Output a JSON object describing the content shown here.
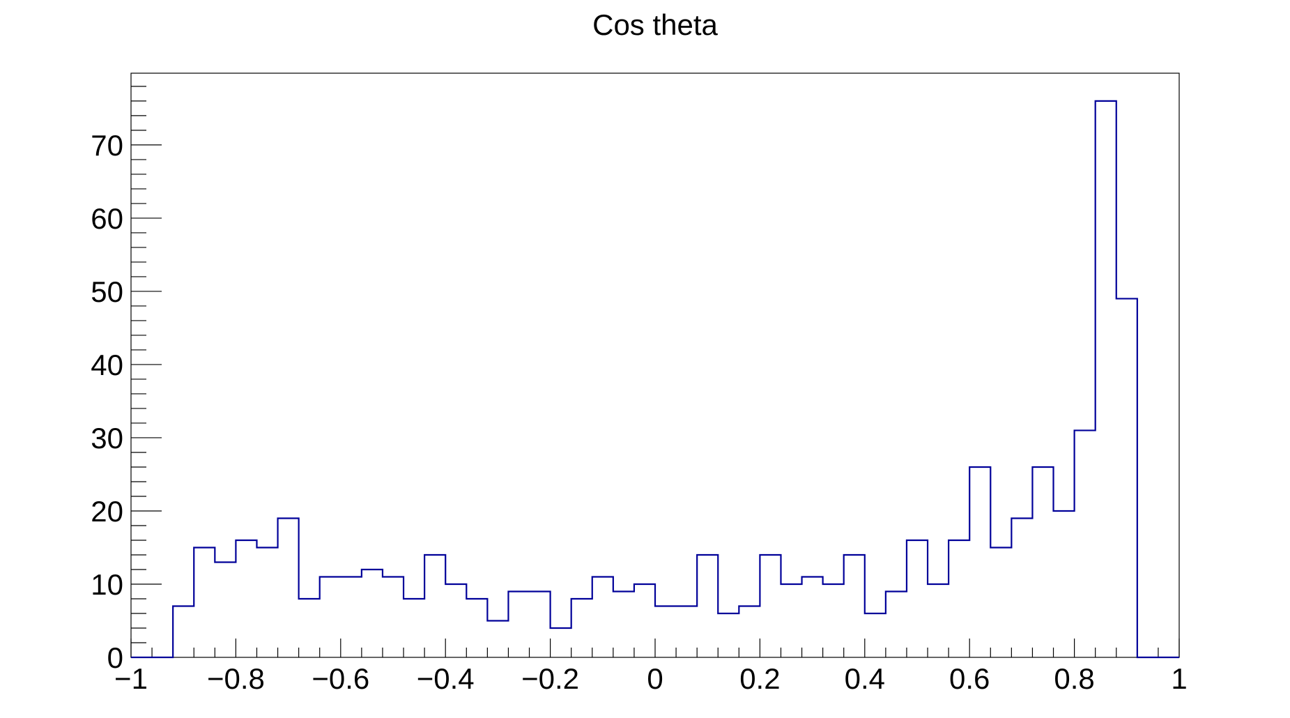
{
  "chart_data": {
    "type": "histogram",
    "title": "Cos theta",
    "xlabel": "",
    "ylabel": "",
    "xlim": [
      -1,
      1
    ],
    "ylim": [
      0,
      79.8
    ],
    "bin_width": 0.04,
    "x_ticks": [
      -1,
      -0.8,
      -0.6,
      -0.4,
      -0.2,
      0,
      0.2,
      0.4,
      0.6,
      0.8,
      1
    ],
    "x_tick_labels": [
      "−1",
      "−0.8",
      "−0.6",
      "−0.4",
      "−0.2",
      "0",
      "0.2",
      "0.4",
      "0.6",
      "0.8",
      "1"
    ],
    "y_ticks": [
      0,
      10,
      20,
      30,
      40,
      50,
      60,
      70
    ],
    "y_tick_labels": [
      "0",
      "10",
      "20",
      "30",
      "40",
      "50",
      "60",
      "70"
    ],
    "grid": false,
    "legend": "none",
    "line_color": "#000099",
    "bin_edges": [
      -1,
      -0.96,
      -0.92,
      -0.88,
      -0.84,
      -0.8,
      -0.76,
      -0.72,
      -0.68,
      -0.64,
      -0.6,
      -0.56,
      -0.52,
      -0.48,
      -0.44,
      -0.4,
      -0.36,
      -0.32,
      -0.28,
      -0.24,
      -0.2,
      -0.16,
      -0.12,
      -0.08,
      -0.04,
      0,
      0.04,
      0.08,
      0.12,
      0.16,
      0.2,
      0.24,
      0.28,
      0.32,
      0.36,
      0.4,
      0.44,
      0.48,
      0.52,
      0.56,
      0.6,
      0.64,
      0.68,
      0.72,
      0.76,
      0.8,
      0.84,
      0.88,
      0.92,
      0.96,
      1
    ],
    "values": [
      0,
      0,
      7,
      15,
      13,
      16,
      15,
      19,
      8,
      11,
      11,
      12,
      11,
      8,
      14,
      10,
      8,
      5,
      9,
      9,
      4,
      8,
      11,
      9,
      10,
      7,
      7,
      14,
      6,
      7,
      14,
      10,
      11,
      10,
      14,
      6,
      9,
      16,
      10,
      16,
      26,
      15,
      19,
      26,
      20,
      31,
      76,
      49,
      0,
      0
    ]
  }
}
